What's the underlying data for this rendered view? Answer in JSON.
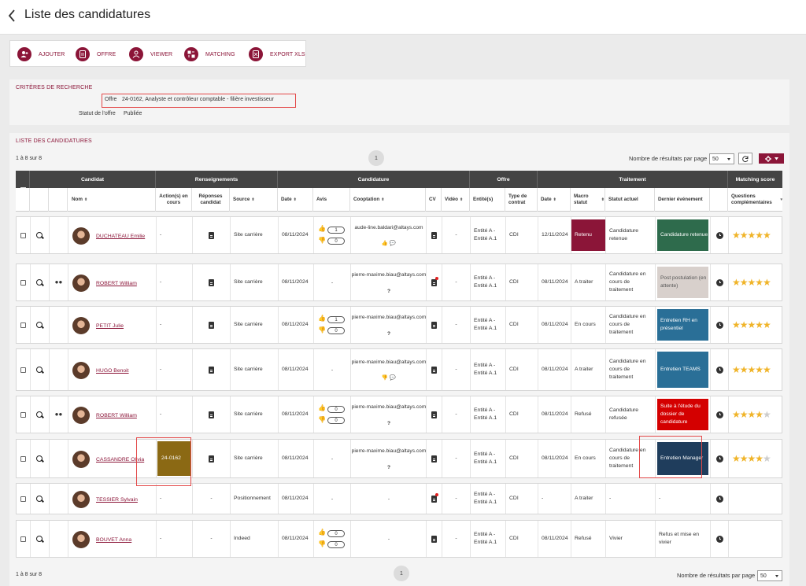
{
  "header": {
    "title": "Liste des candidatures"
  },
  "toolbar": {
    "buttons": [
      "AJOUTER",
      "OFFRE",
      "VIEWER",
      "MATCHING",
      "EXPORT XLS"
    ]
  },
  "criteria": {
    "title": "CRITÈRES DE RECHERCHE",
    "offer_label": "Offre",
    "offer_value": "24-0162, Analyste et contrôleur comptable - filière investisseur",
    "status_label": "Statut de l'offre",
    "status_value": "Publiée"
  },
  "list": {
    "title": "LISTE DES CANDIDATURES",
    "count": "1 à 8 sur 8",
    "page": "1",
    "per_page_label": "Nombre de résultats par page",
    "per_page": "50"
  },
  "groups": [
    "Candidat",
    "Renseignements",
    "Candidature",
    "Offre",
    "Traitement",
    "Matching score"
  ],
  "columns": [
    "Nom",
    "Action(s) en cours",
    "Réponses candidat",
    "Source",
    "Date",
    "Avis",
    "Cooptation",
    "CV",
    "Vidéo",
    "Entité(s)",
    "Type de contrat",
    "Date",
    "Macro statut",
    "Statut actuel",
    "Dernier événement",
    "Questions complémentaires"
  ],
  "colors": {
    "accent": "#8b1538",
    "header": "#444444",
    "star": "#f0b429",
    "highlight": "#e34848"
  },
  "rows": [
    {
      "name": "DUCHATEAU Emilie",
      "action": "-",
      "source": "Site carrière",
      "date": "08/11/2024",
      "avis_up": "1",
      "avis_down": "0",
      "coop": "aude-line.baldari@altays.com",
      "video": "-",
      "entity": "Entité A - Entité A.1",
      "contract": "CDI",
      "date2": "12/11/2024",
      "macro": "Retenu",
      "macro_color": "#8b1538",
      "statut": "Candidature retenue",
      "event": "Candidature retenue",
      "event_color": "#2e6b4c",
      "stars": "★★★★★"
    },
    {
      "name": "ROBERT William",
      "action": "-",
      "source": "Site carrière",
      "date": "08/11/2024",
      "avis": "-",
      "coop": "pierre-maxime.biau@altays.com",
      "coop_q": "?",
      "video": "-",
      "entity": "Entité A - Entité A.1",
      "contract": "CDI",
      "date2": "08/11/2024",
      "macro": "A traiter",
      "statut": "Candidature en cours de traitement",
      "event": "Post postulation (en attente)",
      "event_color": "#d8d0cc",
      "stars": "★★★★★"
    },
    {
      "name": "PETIT Julie",
      "action": "-",
      "source": "Site carrière",
      "date": "08/11/2024",
      "avis_up": "1",
      "avis_down": "0",
      "coop": "pierre-maxime.biau@altays.com",
      "coop_q": "?",
      "video": "-",
      "entity": "Entité A - Entité A.1",
      "contract": "CDI",
      "date2": "08/11/2024",
      "macro": "En cours",
      "statut": "Candidature en cours de traitement",
      "event": "Entretien RH en présentiel",
      "event_color": "#2a6f97",
      "stars": "★★★★★"
    },
    {
      "name": "HUGO Benoit",
      "action": "-",
      "source": "Site carrière",
      "date": "08/11/2024",
      "avis": "-",
      "coop": "pierre-maxime.biau@altays.com",
      "video": "-",
      "entity": "Entité A - Entité A.1",
      "contract": "CDI",
      "date2": "08/11/2024",
      "macro": "A traiter",
      "statut": "Candidature en cours de traitement",
      "event": "Entretien TEAMS",
      "event_color": "#2a6f97",
      "stars": "★★★★★"
    },
    {
      "name": "ROBERT William",
      "action": "-",
      "source": "Site carrière",
      "date": "08/11/2024",
      "avis_up": "0",
      "avis_down": "0",
      "coop": "pierre-maxime.biau@altays.com",
      "coop_q": "?",
      "video": "-",
      "entity": "Entité A - Entité A.1",
      "contract": "CDI",
      "date2": "08/11/2024",
      "macro": "Refusé",
      "statut": "Candidature refusée",
      "event": "Suite à l'étude du dossier de candidature",
      "event_color": "#d40000",
      "stars": "★★★★★"
    },
    {
      "name": "CASSANDRE Olivia",
      "action": "24-0162",
      "source": "Site carrière",
      "date": "08/11/2024",
      "avis": "-",
      "coop": "pierre-maxime.biau@altays.com",
      "coop_q": "?",
      "video": "-",
      "entity": "Entité A - Entité A.1",
      "contract": "CDI",
      "date2": "08/11/2024",
      "macro": "En cours",
      "statut": "Candidature en cours de traitement",
      "event": "Entretien Manager",
      "event_color": "#1f3d5c",
      "stars": "★★★★★"
    },
    {
      "name": "TESSIER Sylvain",
      "action": "-",
      "reponse": "-",
      "source": "Positionnement",
      "date": "08/11/2024",
      "avis": "-",
      "coop": "-",
      "video": "-",
      "entity": "Entité A - Entité A.1",
      "contract": "CDI",
      "date2": "-",
      "macro": "A traiter",
      "statut": "-",
      "event": "-"
    },
    {
      "name": "BOUVET Anna",
      "action": "-",
      "reponse": "-",
      "source": "Indeed",
      "date": "08/11/2024",
      "avis_up": "0",
      "avis_down": "0",
      "coop": "-",
      "video": "-",
      "entity": "Entité A - Entité A.1",
      "contract": "CDI",
      "date2": "08/11/2024",
      "macro": "Refusé",
      "statut": "Vivier",
      "event": "Refus et mise en vivier"
    }
  ]
}
